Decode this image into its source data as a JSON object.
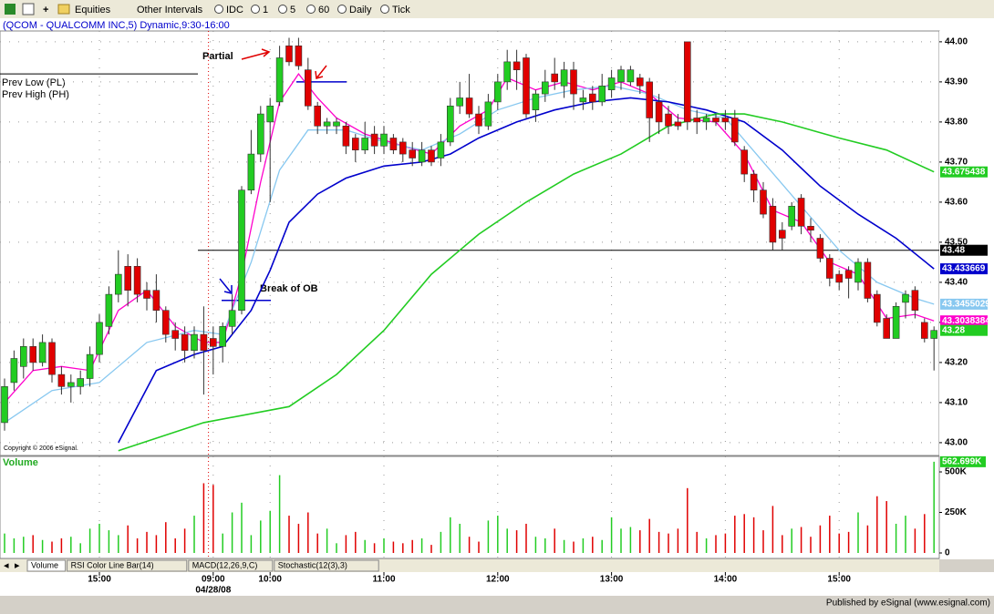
{
  "toolbar": [
    "Equities",
    "Other Intervals",
    "IDC",
    "1",
    "5",
    "60",
    "Daily",
    "Tick"
  ],
  "tabs": [
    "Volume",
    "RSI Color Line Bar(14)",
    "MACD(12,26,9,C)",
    "Stochastic(12(3),3)"
  ],
  "footer": "Published by eSignal (www.esignal.com)",
  "chart_data": {
    "type": "candlestick",
    "title": "(QCOM - QUALCOMM INC,5) Dynamic,9:30-16:00",
    "copyright": "Copyright © 2006 eSignal.",
    "prev_labels": [
      "Prev Low (PL)",
      "Prev High (PH)"
    ],
    "prev_level": 43.92,
    "annotations": [
      "Partial",
      "Break of OB"
    ],
    "ob_levels": [
      43.9,
      43.355
    ],
    "date_label": "04/28/08",
    "ylim": [
      42.968,
      44.027
    ],
    "yticks": [
      {
        "value": 43.0,
        "label": "43.00"
      },
      {
        "value": 43.1,
        "label": "43.10"
      },
      {
        "value": 43.2,
        "label": "43.20"
      },
      {
        "value": 43.3,
        "label": "43.30"
      },
      {
        "value": 43.4,
        "label": "43.40"
      },
      {
        "value": 43.5,
        "label": "43.50"
      },
      {
        "value": 43.6,
        "label": "43.60"
      },
      {
        "value": 43.7,
        "label": "43.70"
      },
      {
        "value": 43.8,
        "label": "43.80"
      },
      {
        "value": 43.9,
        "label": "43.90"
      },
      {
        "value": 44.0,
        "label": "44.00"
      }
    ],
    "xlim": [
      -0.5,
      98.5
    ],
    "xticks": [
      {
        "value": 10,
        "label": "15:00"
      },
      {
        "value": 22,
        "label": "09:00"
      },
      {
        "value": 28,
        "label": "10:00"
      },
      {
        "value": 40,
        "label": "11:00"
      },
      {
        "value": 52,
        "label": "12:00"
      },
      {
        "value": 64,
        "label": "13:00"
      },
      {
        "value": 76,
        "label": "14:00"
      },
      {
        "value": 88,
        "label": "15:00"
      }
    ],
    "grid": true,
    "up_color": "#22cc22",
    "down_color": "#e00000",
    "open": [
      43.05,
      43.15,
      43.19,
      43.24,
      43.2,
      43.25,
      43.17,
      43.14,
      43.14,
      43.16,
      43.22,
      43.29,
      43.37,
      43.44,
      43.44,
      43.38,
      43.38,
      43.33,
      43.28,
      43.27,
      43.23,
      43.27,
      43.26,
      43.24,
      43.29,
      43.33,
      43.63,
      43.72,
      43.8,
      43.85,
      43.99,
      43.99,
      43.93,
      43.84,
      43.79,
      43.79,
      43.79,
      43.76,
      43.73,
      43.77,
      43.74,
      43.76,
      43.75,
      43.73,
      43.7,
      43.73,
      43.71,
      43.75,
      43.84,
      43.86,
      43.82,
      43.79,
      43.85,
      43.9,
      43.95,
      43.96,
      43.83,
      43.87,
      43.92,
      43.89,
      43.93,
      43.85,
      43.87,
      43.85,
      43.88,
      43.9,
      43.9,
      43.91,
      43.9,
      43.85,
      43.82,
      43.8,
      44.0,
      43.81,
      43.8,
      43.81,
      43.81,
      43.81,
      43.73,
      43.67,
      43.63,
      43.59,
      43.53,
      43.54,
      43.61,
      43.54,
      43.51,
      43.46,
      43.42,
      43.43,
      43.4,
      43.45,
      43.37,
      43.31,
      43.26,
      43.35,
      43.38,
      43.3,
      43.26
    ],
    "high": [
      43.16,
      43.23,
      43.26,
      43.26,
      43.27,
      43.26,
      43.19,
      43.17,
      43.18,
      43.24,
      43.32,
      43.39,
      43.48,
      43.47,
      43.46,
      43.4,
      43.42,
      43.34,
      43.3,
      43.29,
      43.29,
      43.34,
      43.29,
      43.3,
      43.37,
      43.64,
      43.78,
      43.84,
      43.86,
      43.99,
      44.01,
      44.01,
      43.96,
      43.85,
      43.81,
      43.81,
      43.8,
      43.77,
      43.8,
      43.79,
      43.79,
      43.77,
      43.76,
      43.75,
      43.75,
      43.74,
      43.77,
      43.86,
      43.9,
      43.92,
      43.84,
      43.87,
      43.92,
      43.98,
      43.98,
      43.97,
      43.88,
      43.93,
      43.96,
      43.95,
      43.95,
      43.88,
      43.89,
      43.92,
      43.93,
      43.94,
      43.94,
      43.92,
      43.91,
      43.87,
      43.84,
      43.82,
      44.0,
      43.83,
      43.82,
      43.82,
      43.83,
      43.83,
      43.74,
      43.68,
      43.65,
      43.61,
      43.55,
      43.6,
      43.62,
      43.56,
      43.52,
      43.47,
      43.43,
      43.44,
      43.46,
      43.46,
      43.38,
      43.32,
      43.35,
      43.38,
      43.39,
      43.31,
      43.29
    ],
    "low": [
      43.03,
      43.13,
      43.16,
      43.18,
      43.19,
      43.15,
      43.12,
      43.1,
      43.12,
      43.14,
      43.2,
      43.27,
      43.35,
      43.34,
      43.35,
      43.33,
      43.3,
      43.25,
      43.23,
      43.2,
      43.21,
      43.12,
      43.17,
      43.2,
      43.27,
      43.32,
      43.62,
      43.7,
      43.6,
      43.84,
      43.94,
      43.93,
      43.83,
      43.77,
      43.77,
      43.77,
      43.72,
      43.7,
      43.72,
      43.72,
      43.72,
      43.72,
      43.7,
      43.69,
      43.69,
      43.69,
      43.69,
      43.74,
      43.82,
      43.81,
      43.77,
      43.78,
      43.83,
      43.88,
      43.88,
      43.81,
      43.8,
      43.85,
      43.88,
      43.86,
      43.83,
      43.83,
      43.83,
      43.84,
      43.86,
      43.88,
      43.89,
      43.87,
      43.75,
      43.77,
      43.77,
      43.78,
      43.78,
      43.77,
      43.78,
      43.79,
      43.78,
      43.74,
      43.65,
      43.6,
      43.56,
      43.48,
      43.48,
      43.53,
      43.52,
      43.5,
      43.45,
      43.39,
      43.38,
      43.36,
      43.38,
      43.35,
      43.29,
      43.26,
      43.26,
      43.31,
      43.31,
      43.25,
      43.18
    ],
    "close": [
      43.14,
      43.21,
      43.24,
      43.2,
      43.25,
      43.17,
      43.14,
      43.15,
      43.16,
      43.22,
      43.3,
      43.37,
      43.42,
      43.38,
      43.37,
      43.36,
      43.33,
      43.27,
      43.26,
      43.23,
      43.27,
      43.23,
      43.24,
      43.29,
      43.33,
      43.63,
      43.72,
      43.82,
      43.84,
      43.96,
      43.95,
      43.94,
      43.84,
      43.79,
      43.8,
      43.8,
      43.74,
      43.73,
      43.76,
      43.74,
      43.77,
      43.73,
      43.72,
      43.71,
      43.73,
      43.7,
      43.75,
      43.84,
      43.86,
      43.82,
      43.79,
      43.85,
      43.9,
      43.95,
      43.93,
      43.82,
      43.87,
      43.9,
      43.9,
      43.93,
      43.87,
      43.86,
      43.85,
      43.89,
      43.91,
      43.93,
      43.93,
      43.89,
      43.81,
      43.8,
      43.79,
      43.79,
      43.8,
      43.8,
      43.81,
      43.8,
      43.8,
      43.75,
      43.67,
      43.63,
      43.57,
      43.5,
      43.51,
      43.59,
      43.54,
      43.53,
      43.46,
      43.41,
      43.4,
      43.41,
      43.45,
      43.36,
      43.3,
      43.26,
      43.34,
      43.37,
      43.33,
      43.26,
      43.28
    ],
    "series": [
      {
        "color": "#ff00cc",
        "x": [
          0,
          3,
          6,
          9,
          12,
          15,
          18,
          21,
          23,
          25,
          27,
          29,
          31,
          33,
          35,
          38,
          42,
          45,
          48,
          51,
          53,
          56,
          59,
          62,
          65,
          68,
          71,
          75,
          78,
          81,
          84,
          87,
          90,
          93,
          96,
          98
        ],
        "values": [
          43.1,
          43.18,
          43.19,
          43.18,
          43.33,
          43.38,
          43.29,
          43.25,
          43.25,
          43.42,
          43.65,
          43.85,
          43.92,
          43.86,
          43.81,
          43.77,
          43.74,
          43.72,
          43.79,
          43.83,
          43.91,
          43.88,
          43.9,
          43.88,
          43.9,
          43.87,
          43.81,
          43.8,
          43.72,
          43.58,
          43.55,
          43.45,
          43.42,
          43.31,
          43.32,
          43.3038384
        ]
      },
      {
        "color": "#88c8f0",
        "x": [
          0,
          5,
          10,
          15,
          20,
          23,
          26,
          29,
          32,
          36,
          40,
          44,
          48,
          52,
          56,
          60,
          64,
          68,
          72,
          76,
          80,
          84,
          88,
          92,
          96,
          98
        ],
        "values": [
          43.05,
          43.13,
          43.15,
          43.25,
          43.28,
          43.27,
          43.45,
          43.68,
          43.78,
          43.78,
          43.75,
          43.73,
          43.77,
          43.83,
          43.86,
          43.88,
          43.89,
          43.87,
          43.83,
          43.81,
          43.7,
          43.59,
          43.48,
          43.4,
          43.36,
          43.3455029
        ]
      },
      {
        "color": "#0000cc",
        "x": [
          12,
          16,
          20,
          23,
          26,
          28,
          30,
          33,
          36,
          40,
          44,
          47,
          50,
          54,
          58,
          62,
          66,
          70,
          74,
          78,
          82,
          86,
          90,
          94,
          98
        ],
        "values": [
          43.0,
          43.18,
          43.22,
          43.24,
          43.33,
          43.43,
          43.55,
          43.62,
          43.66,
          43.69,
          43.7,
          43.72,
          43.76,
          43.8,
          43.83,
          43.85,
          43.86,
          43.85,
          43.83,
          43.8,
          43.73,
          43.64,
          43.57,
          43.51,
          43.433669
        ]
      },
      {
        "color": "#22cc22",
        "x": [
          12,
          21,
          30,
          35,
          40,
          45,
          50,
          55,
          60,
          65,
          70,
          75,
          78,
          82,
          88,
          93,
          98
        ],
        "values": [
          42.98,
          43.05,
          43.09,
          43.17,
          43.28,
          43.42,
          43.52,
          43.6,
          43.67,
          43.72,
          43.79,
          43.82,
          43.82,
          43.8,
          43.76,
          43.73,
          43.675438
        ]
      }
    ],
    "price_markers": [
      {
        "value": 43.675438,
        "color": "#22cc22"
      },
      {
        "value": 43.48,
        "color": "#000000"
      },
      {
        "value": 43.433669,
        "color": "#0000cc"
      },
      {
        "value": 43.3455029,
        "color": "#88c8f0"
      },
      {
        "value": 43.3038384,
        "color": "#ff00cc"
      },
      {
        "value": 43.28,
        "color": "#22cc22"
      }
    ],
    "volume": {
      "title": "Volume",
      "ylim": [
        0,
        590000
      ],
      "yticks": [
        0,
        {
          "value": 250000,
          "label": "250K"
        },
        {
          "value": 500000,
          "label": "500K"
        }
      ],
      "values": [
        120000,
        90000,
        100000,
        110000,
        80000,
        70000,
        90000,
        100000,
        60000,
        150000,
        180000,
        140000,
        110000,
        170000,
        90000,
        130000,
        110000,
        190000,
        90000,
        150000,
        230000,
        430000,
        420000,
        120000,
        250000,
        310000,
        110000,
        200000,
        260000,
        480000,
        230000,
        180000,
        250000,
        120000,
        150000,
        60000,
        110000,
        130000,
        80000,
        60000,
        90000,
        70000,
        60000,
        80000,
        90000,
        50000,
        130000,
        220000,
        180000,
        100000,
        70000,
        200000,
        230000,
        150000,
        140000,
        180000,
        100000,
        90000,
        150000,
        80000,
        70000,
        90000,
        100000,
        80000,
        220000,
        150000,
        160000,
        140000,
        210000,
        130000,
        120000,
        150000,
        400000,
        130000,
        90000,
        110000,
        120000,
        230000,
        240000,
        220000,
        140000,
        290000,
        110000,
        150000,
        160000,
        100000,
        170000,
        230000,
        120000,
        130000,
        250000,
        170000,
        350000,
        320000,
        180000,
        230000,
        150000,
        240000,
        562699
      ],
      "last_label": {
        "value": 562699,
        "label": "562.699K"
      }
    }
  }
}
